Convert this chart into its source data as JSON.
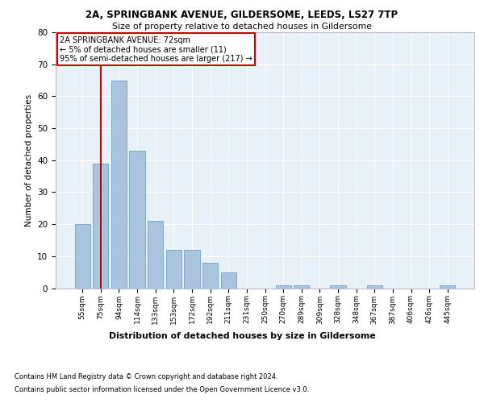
{
  "title1": "2A, SPRINGBANK AVENUE, GILDERSOME, LEEDS, LS27 7TP",
  "title2": "Size of property relative to detached houses in Gildersome",
  "xlabel": "Distribution of detached houses by size in Gildersome",
  "ylabel": "Number of detached properties",
  "categories": [
    "55sqm",
    "75sqm",
    "94sqm",
    "114sqm",
    "133sqm",
    "153sqm",
    "172sqm",
    "192sqm",
    "211sqm",
    "231sqm",
    "250sqm",
    "270sqm",
    "289sqm",
    "309sqm",
    "328sqm",
    "348sqm",
    "367sqm",
    "387sqm",
    "406sqm",
    "426sqm",
    "445sqm"
  ],
  "values": [
    20,
    39,
    65,
    43,
    21,
    12,
    12,
    8,
    5,
    0,
    0,
    1,
    1,
    0,
    1,
    0,
    1,
    0,
    0,
    0,
    1
  ],
  "bar_color": "#aac4e0",
  "bar_edge_color": "#7aaad0",
  "vline_x_index": 1.0,
  "property_line_label": "2A SPRINGBANK AVENUE: 72sqm",
  "annotation_line1": "← 5% of detached houses are smaller (11)",
  "annotation_line2": "95% of semi-detached houses are larger (217) →",
  "annotation_box_color": "#ffffff",
  "annotation_box_edge": "#cc0000",
  "vline_color": "#cc0000",
  "ylim": [
    0,
    80
  ],
  "yticks": [
    0,
    10,
    20,
    30,
    40,
    50,
    60,
    70,
    80
  ],
  "bg_color": "#e8f0f8",
  "grid_color": "#ffffff",
  "footnote1": "Contains HM Land Registry data © Crown copyright and database right 2024.",
  "footnote2": "Contains public sector information licensed under the Open Government Licence v3.0."
}
